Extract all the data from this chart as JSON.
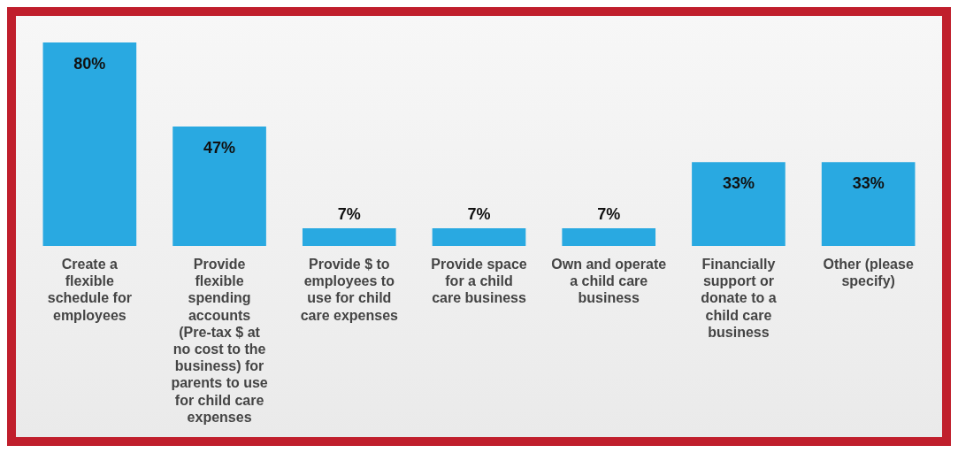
{
  "chart_data": {
    "type": "bar",
    "categories": [
      "Create a flexible schedule for employees",
      "Provide flexible spending accounts (Pre-tax $ at no cost to the business) for parents to use for child care expenses",
      "Provide $ to employees to use for child care expenses",
      "Provide space for a child care business",
      "Own and operate a child care business",
      "Financially support or donate to a child care business",
      "Other (please specify)"
    ],
    "values": [
      80,
      47,
      7,
      7,
      7,
      33,
      33
    ],
    "value_labels": [
      "80%",
      "47%",
      "7%",
      "7%",
      "7%",
      "33%",
      "33%"
    ],
    "color": "#29a9e1",
    "grid": false,
    "legend": false
  }
}
